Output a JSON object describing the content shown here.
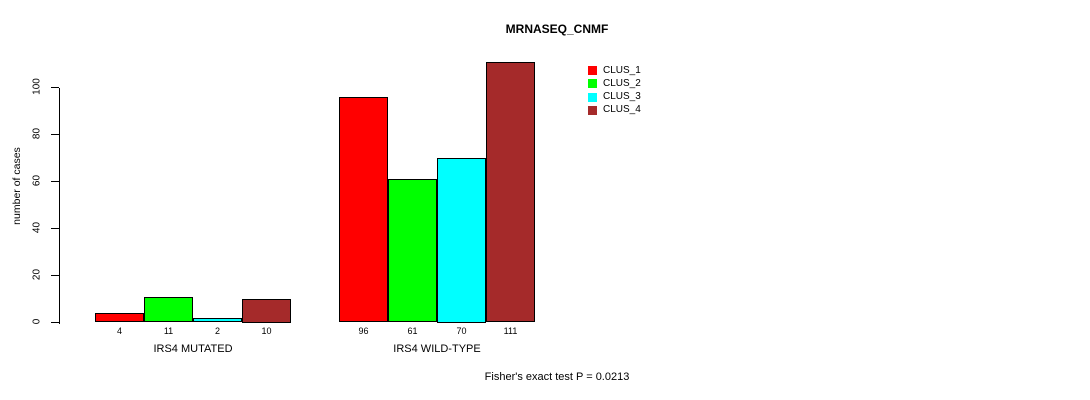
{
  "title": "MRNASEQ_CNMF",
  "footer": "Fisher's exact test P = 0.0213",
  "chart_data": {
    "type": "bar",
    "title": "MRNASEQ_CNMF",
    "xlabel": "",
    "ylabel": "number of cases",
    "ylim": [
      0,
      100
    ],
    "y_ticks": [
      0,
      20,
      40,
      60,
      80,
      100
    ],
    "grid": false,
    "legend_position": "top-right-inside",
    "categories": [
      "IRS4 MUTATED",
      "IRS4 WILD-TYPE"
    ],
    "series": [
      {
        "name": "CLUS_1",
        "color": "#ff0000",
        "values": [
          4,
          96
        ]
      },
      {
        "name": "CLUS_2",
        "color": "#00ff00",
        "values": [
          11,
          61
        ]
      },
      {
        "name": "CLUS_3",
        "color": "#00ffff",
        "values": [
          2,
          70
        ]
      },
      {
        "name": "CLUS_4",
        "color": "#a52a2a",
        "values": [
          10,
          111
        ]
      }
    ],
    "bar_value_labels": [
      [
        4,
        11,
        2,
        10
      ],
      [
        96,
        61,
        70,
        111
      ]
    ],
    "annotation": "Fisher's exact test P = 0.0213",
    "axis_color": "#000000",
    "bar_border_color": "#000000",
    "background_color": "#ffffff"
  }
}
